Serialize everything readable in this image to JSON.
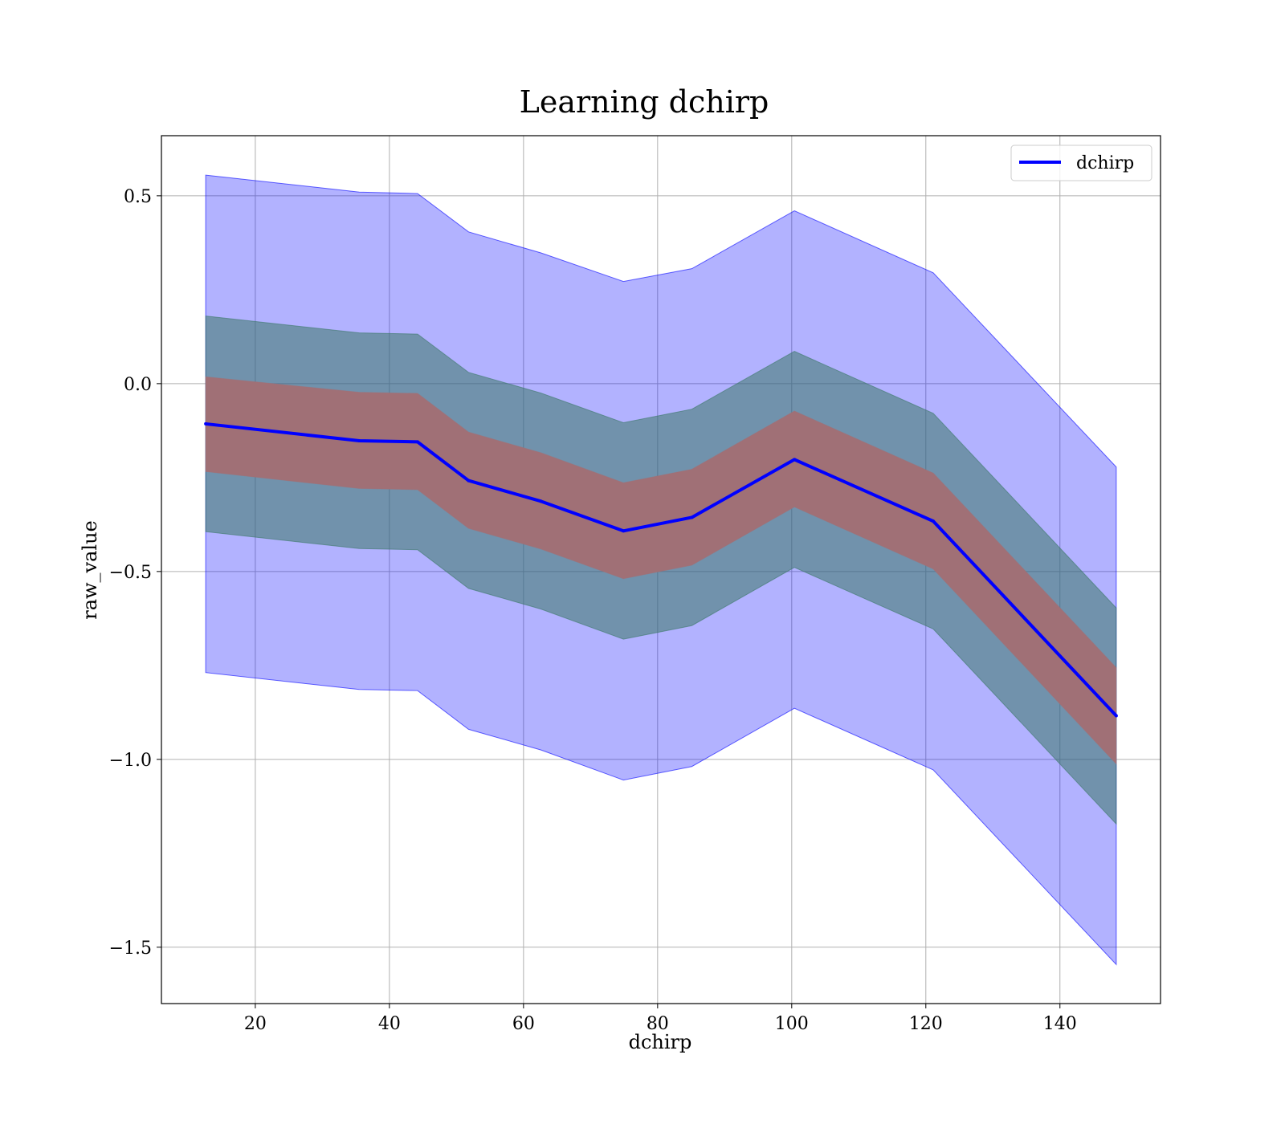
{
  "chart_data": {
    "type": "line",
    "title": "Learning dchirp",
    "xlabel": "dchirp",
    "ylabel": "raw_value",
    "xlim": [
      6,
      155
    ],
    "ylim": [
      -1.65,
      0.66
    ],
    "grid": true,
    "legend_position": "top-right",
    "x_ticks": [
      20,
      40,
      60,
      80,
      100,
      120,
      140
    ],
    "y_ticks": [
      0.5,
      0.0,
      -0.5,
      -1.0,
      -1.5
    ],
    "y_tick_labels": [
      "0.5",
      "0.0",
      "−0.5",
      "−1.0",
      "−1.5"
    ],
    "x": [
      12.6,
      35.5,
      44.2,
      51.8,
      62.6,
      74.9,
      85.1,
      100.4,
      121.1,
      148.4
    ],
    "series": [
      {
        "name": "dchirp",
        "color": "#0000ff",
        "values": [
          -0.107,
          -0.152,
          -0.155,
          -0.258,
          -0.313,
          -0.392,
          -0.356,
          -0.202,
          -0.366,
          -0.884
        ]
      }
    ],
    "bands": [
      {
        "color": "#0000ff",
        "opacity": 0.3,
        "upper": [
          0.555,
          0.51,
          0.506,
          0.404,
          0.348,
          0.272,
          0.306,
          0.46,
          0.295,
          -0.222
        ],
        "lower": [
          -0.769,
          -0.814,
          -0.817,
          -0.92,
          -0.975,
          -1.055,
          -1.019,
          -0.864,
          -1.028,
          -1.546
        ]
      },
      {
        "color": "#3c7868",
        "opacity": 0.55,
        "upper": [
          0.18,
          0.135,
          0.132,
          0.03,
          -0.025,
          -0.104,
          -0.068,
          0.086,
          -0.079,
          -0.597
        ],
        "lower": [
          -0.394,
          -0.439,
          -0.442,
          -0.545,
          -0.6,
          -0.68,
          -0.644,
          -0.489,
          -0.653,
          -1.172
        ]
      },
      {
        "color": "#a07076",
        "opacity": 1.0,
        "upper": [
          0.018,
          -0.023,
          -0.026,
          -0.129,
          -0.184,
          -0.264,
          -0.228,
          -0.073,
          -0.238,
          -0.756
        ],
        "lower": [
          -0.234,
          -0.279,
          -0.282,
          -0.385,
          -0.44,
          -0.519,
          -0.483,
          -0.328,
          -0.493,
          -1.012
        ]
      }
    ]
  }
}
